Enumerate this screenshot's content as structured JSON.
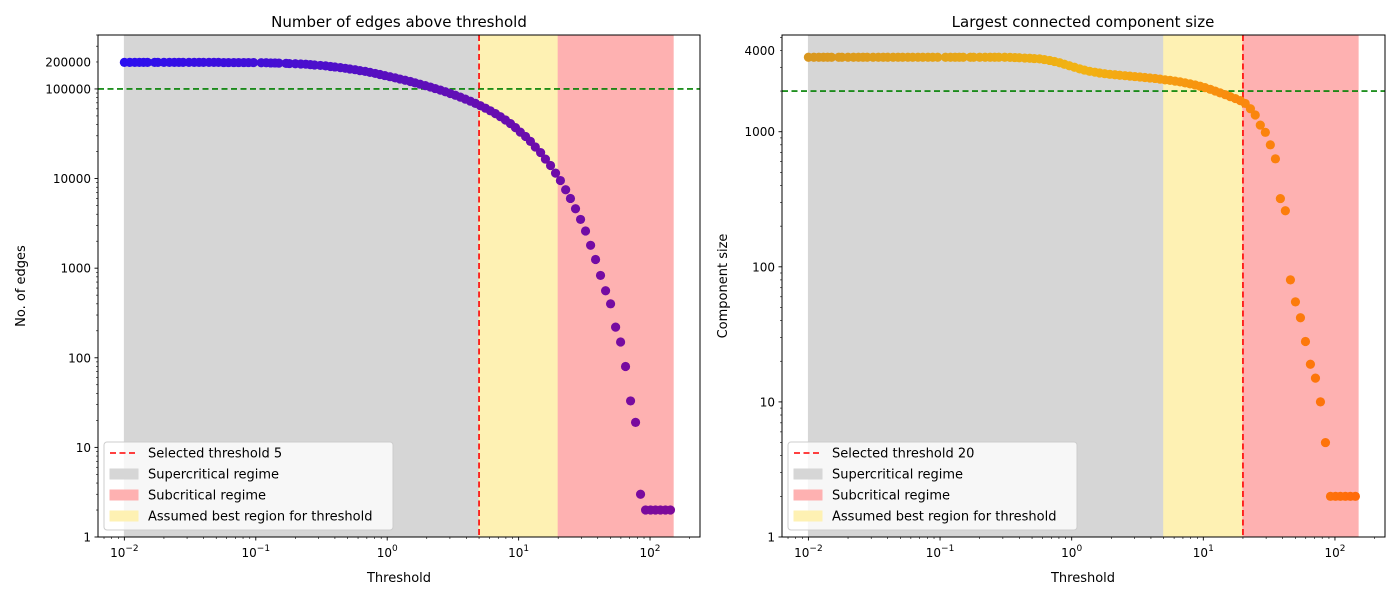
{
  "chart_data": [
    {
      "type": "scatter",
      "title": "Number of edges above threshold",
      "xlabel": "Threshold",
      "ylabel": "No. of edges",
      "xscale": "log",
      "yscale": "log",
      "xlim": [
        0.0063,
        240
      ],
      "ylim": [
        1,
        400000
      ],
      "x_tick_labels": [
        {
          "value": 0.01,
          "base": "10",
          "exp": "−2"
        },
        {
          "value": 0.1,
          "base": "10",
          "exp": "−1"
        },
        {
          "value": 1,
          "base": "10",
          "exp": "0"
        },
        {
          "value": 10,
          "base": "10",
          "exp": "1"
        },
        {
          "value": 100,
          "base": "10",
          "exp": "2"
        }
      ],
      "y_tick_labels": [
        {
          "value": 1,
          "label": "1"
        },
        {
          "value": 10,
          "label": "10"
        },
        {
          "value": 100,
          "label": "100"
        },
        {
          "value": 1000,
          "label": "1000"
        },
        {
          "value": 10000,
          "label": "10000"
        },
        {
          "value": 100000,
          "label": "100000"
        },
        {
          "value": 200000,
          "label": "200000"
        }
      ],
      "regions": [
        {
          "name": "Supercritical regime",
          "x": [
            0.01,
            5
          ],
          "color": "#d6d6d6"
        },
        {
          "name": "Assumed best region for threshold",
          "x": [
            5,
            20
          ],
          "color": "#fef1b3"
        },
        {
          "name": "Subcritical regime",
          "x": [
            20,
            150
          ],
          "color": "#feb1b1"
        }
      ],
      "selected_threshold": {
        "name": "Selected threshold 5",
        "value": 5,
        "color": "#ff0000"
      },
      "reference_line": {
        "value": 100000,
        "color": "#008000"
      },
      "marker_colors": [
        "#2b0ff0",
        "#5a0fbd",
        "#7d0a9a"
      ],
      "legend_position": "lower left",
      "legend": [
        {
          "kind": "line",
          "label": "Selected threshold 5",
          "color": "#ff0000"
        },
        {
          "kind": "patch",
          "label": "Supercritical regime",
          "color": "#d6d6d6"
        },
        {
          "kind": "patch",
          "label": "Subcritical regime",
          "color": "#feb1b1"
        },
        {
          "kind": "patch",
          "label": "Assumed best region for threshold",
          "color": "#fef1b3"
        }
      ],
      "series": [
        {
          "x": [
            0.01,
            0.011,
            0.012,
            0.013,
            0.014,
            0.015,
            0.017,
            0.018,
            0.02,
            0.022,
            0.024,
            0.026,
            0.028,
            0.031,
            0.034,
            0.037,
            0.04,
            0.044,
            0.048,
            0.052,
            0.057,
            0.062,
            0.068,
            0.074,
            0.081,
            0.088,
            0.096,
            0.11,
            0.12,
            0.13,
            0.14,
            0.15,
            0.17,
            0.18,
            0.2,
            0.22,
            0.24,
            0.26,
            0.28,
            0.31,
            0.34,
            0.37,
            0.4,
            0.44,
            0.48,
            0.52,
            0.57,
            0.62,
            0.68,
            0.74,
            0.81,
            0.88,
            0.96,
            1.05,
            1.15,
            1.25,
            1.37,
            1.5,
            1.63,
            1.78,
            1.95,
            2.13,
            2.32,
            2.54,
            2.77,
            3.02,
            3.3,
            3.6,
            3.93,
            4.3,
            4.69,
            5.12,
            5.59,
            6.1,
            6.66,
            7.27,
            7.94,
            8.67,
            9.46,
            10.3,
            11.3,
            12.3,
            13.4,
            14.7,
            16.0,
            17.5,
            19.1,
            20.8,
            22.8,
            24.8,
            27.1,
            29.6,
            32.3,
            35.3,
            38.5,
            42.0,
            45.9,
            50.1,
            54.7,
            59.7,
            65.1,
            71.1,
            77.6,
            84.7,
            92.5,
            101,
            110,
            120,
            131,
            143
          ],
          "y": [
            198000,
            198000,
            198000,
            198000,
            198000,
            198000,
            198000,
            198000,
            198000,
            198000,
            198000,
            198000,
            198000,
            198000,
            198000,
            198000,
            198000,
            198000,
            198000,
            198000,
            197000,
            197000,
            197000,
            197000,
            197000,
            197000,
            197000,
            196000,
            196000,
            195000,
            195000,
            194000,
            193000,
            192000,
            191000,
            190000,
            189000,
            187000,
            185000,
            183000,
            181000,
            178000,
            176000,
            173000,
            170000,
            167000,
            164000,
            160000,
            157000,
            153000,
            149000,
            145000,
            141000,
            137000,
            133000,
            129000,
            125000,
            121000,
            117000,
            113000,
            109000,
            105000,
            101000,
            97000,
            93000,
            89000,
            85000,
            81000,
            77000,
            73000,
            69000,
            65000,
            61000,
            57000,
            53000,
            49000,
            45000,
            41000,
            37000,
            33000,
            29500,
            26000,
            22500,
            19500,
            16500,
            14000,
            11500,
            9500,
            7500,
            6000,
            4600,
            3500,
            2600,
            1800,
            1250,
            830,
            560,
            400,
            220,
            150,
            80,
            33,
            19,
            3,
            2,
            2,
            2,
            2,
            2,
            2
          ]
        }
      ]
    },
    {
      "type": "scatter",
      "title": "Largest connected component size",
      "xlabel": "Threshold",
      "ylabel": "Component size",
      "xscale": "log",
      "yscale": "log",
      "xlim": [
        0.0063,
        240
      ],
      "ylim": [
        1,
        5200
      ],
      "x_tick_labels": [
        {
          "value": 0.01,
          "base": "10",
          "exp": "−2"
        },
        {
          "value": 0.1,
          "base": "10",
          "exp": "−1"
        },
        {
          "value": 1,
          "base": "10",
          "exp": "0"
        },
        {
          "value": 10,
          "base": "10",
          "exp": "1"
        },
        {
          "value": 100,
          "base": "10",
          "exp": "2"
        }
      ],
      "y_tick_labels": [
        {
          "value": 1,
          "label": "1"
        },
        {
          "value": 10,
          "label": "10"
        },
        {
          "value": 100,
          "label": "100"
        },
        {
          "value": 1000,
          "label": "1000"
        },
        {
          "value": 4000,
          "label": "4000"
        }
      ],
      "regions": [
        {
          "name": "Supercritical regime",
          "x": [
            0.01,
            5
          ],
          "color": "#d6d6d6"
        },
        {
          "name": "Assumed best region for threshold",
          "x": [
            5,
            20
          ],
          "color": "#fef1b3"
        },
        {
          "name": "Subcritical regime",
          "x": [
            20,
            150
          ],
          "color": "#feb1b1"
        }
      ],
      "selected_threshold": {
        "name": "Selected threshold 20",
        "value": 20,
        "color": "#ff0000"
      },
      "reference_line": {
        "value": 2000,
        "color": "#008000"
      },
      "marker_colors": [
        "#d9971f",
        "#f2b313",
        "#ff6b0a"
      ],
      "legend_position": "lower left",
      "legend": [
        {
          "kind": "line",
          "label": "Selected threshold 20",
          "color": "#ff0000"
        },
        {
          "kind": "patch",
          "label": "Supercritical regime",
          "color": "#d6d6d6"
        },
        {
          "kind": "patch",
          "label": "Subcritical regime",
          "color": "#feb1b1"
        },
        {
          "kind": "patch",
          "label": "Assumed best region for threshold",
          "color": "#fef1b3"
        }
      ],
      "series": [
        {
          "x": [
            0.01,
            0.011,
            0.012,
            0.013,
            0.014,
            0.015,
            0.017,
            0.018,
            0.02,
            0.022,
            0.024,
            0.026,
            0.028,
            0.031,
            0.034,
            0.037,
            0.04,
            0.044,
            0.048,
            0.052,
            0.057,
            0.062,
            0.068,
            0.074,
            0.081,
            0.088,
            0.096,
            0.11,
            0.12,
            0.13,
            0.14,
            0.15,
            0.17,
            0.18,
            0.2,
            0.22,
            0.24,
            0.26,
            0.28,
            0.31,
            0.34,
            0.37,
            0.4,
            0.44,
            0.48,
            0.52,
            0.57,
            0.62,
            0.68,
            0.74,
            0.81,
            0.88,
            0.96,
            1.05,
            1.15,
            1.25,
            1.37,
            1.5,
            1.63,
            1.78,
            1.95,
            2.13,
            2.32,
            2.54,
            2.77,
            3.02,
            3.3,
            3.6,
            3.93,
            4.3,
            4.69,
            5.12,
            5.59,
            6.1,
            6.66,
            7.27,
            7.94,
            8.67,
            9.46,
            10.3,
            11.3,
            12.3,
            13.4,
            14.7,
            16.0,
            17.5,
            19.1,
            20.8,
            22.8,
            24.8,
            27.1,
            29.6,
            32.3,
            35.3,
            38.5,
            42.0,
            45.9,
            50.1,
            54.7,
            59.7,
            65.1,
            71.1,
            77.6,
            84.7,
            92.5,
            101,
            110,
            120,
            131,
            143
          ],
          "y": [
            3560,
            3560,
            3560,
            3560,
            3560,
            3560,
            3560,
            3560,
            3560,
            3560,
            3560,
            3560,
            3560,
            3560,
            3560,
            3560,
            3560,
            3560,
            3560,
            3560,
            3560,
            3560,
            3560,
            3560,
            3560,
            3560,
            3560,
            3560,
            3560,
            3560,
            3560,
            3560,
            3560,
            3560,
            3560,
            3560,
            3560,
            3560,
            3560,
            3560,
            3550,
            3540,
            3530,
            3510,
            3500,
            3480,
            3460,
            3420,
            3370,
            3310,
            3240,
            3160,
            3080,
            3000,
            2920,
            2860,
            2800,
            2760,
            2720,
            2690,
            2660,
            2640,
            2620,
            2600,
            2580,
            2560,
            2540,
            2520,
            2500,
            2480,
            2450,
            2420,
            2400,
            2370,
            2340,
            2300,
            2260,
            2220,
            2170,
            2120,
            2060,
            2000,
            1940,
            1880,
            1820,
            1760,
            1700,
            1620,
            1480,
            1330,
            1120,
            990,
            800,
            630,
            320,
            260,
            80,
            55,
            42,
            28,
            19,
            15,
            10,
            5,
            2,
            2,
            2,
            2,
            2,
            2
          ]
        }
      ]
    }
  ]
}
